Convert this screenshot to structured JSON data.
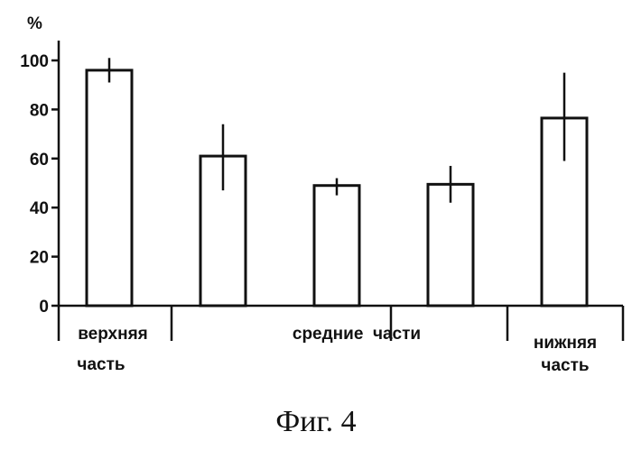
{
  "chart_data": {
    "type": "bar",
    "y_unit": "%",
    "ylim": [
      0,
      100
    ],
    "yticks": [
      0,
      20,
      40,
      60,
      80,
      100
    ],
    "grid": false,
    "legend": "none",
    "values": [
      96,
      61,
      49,
      49.5,
      76.5
    ],
    "error_low": [
      91,
      47,
      45,
      42,
      59
    ],
    "error_high": [
      101,
      74,
      52,
      57,
      95
    ],
    "groups": [
      {
        "label_lines": [
          "верхняя",
          "часть"
        ],
        "bars": [
          0
        ]
      },
      {
        "label_lines": [
          "средние  части"
        ],
        "bars": [
          1,
          2,
          3
        ]
      },
      {
        "label_lines": [
          "нижняя",
          "часть"
        ],
        "bars": [
          4
        ]
      }
    ],
    "caption": "Фиг. 4",
    "bar_fill": "#ffffff",
    "ink": "#111111"
  }
}
